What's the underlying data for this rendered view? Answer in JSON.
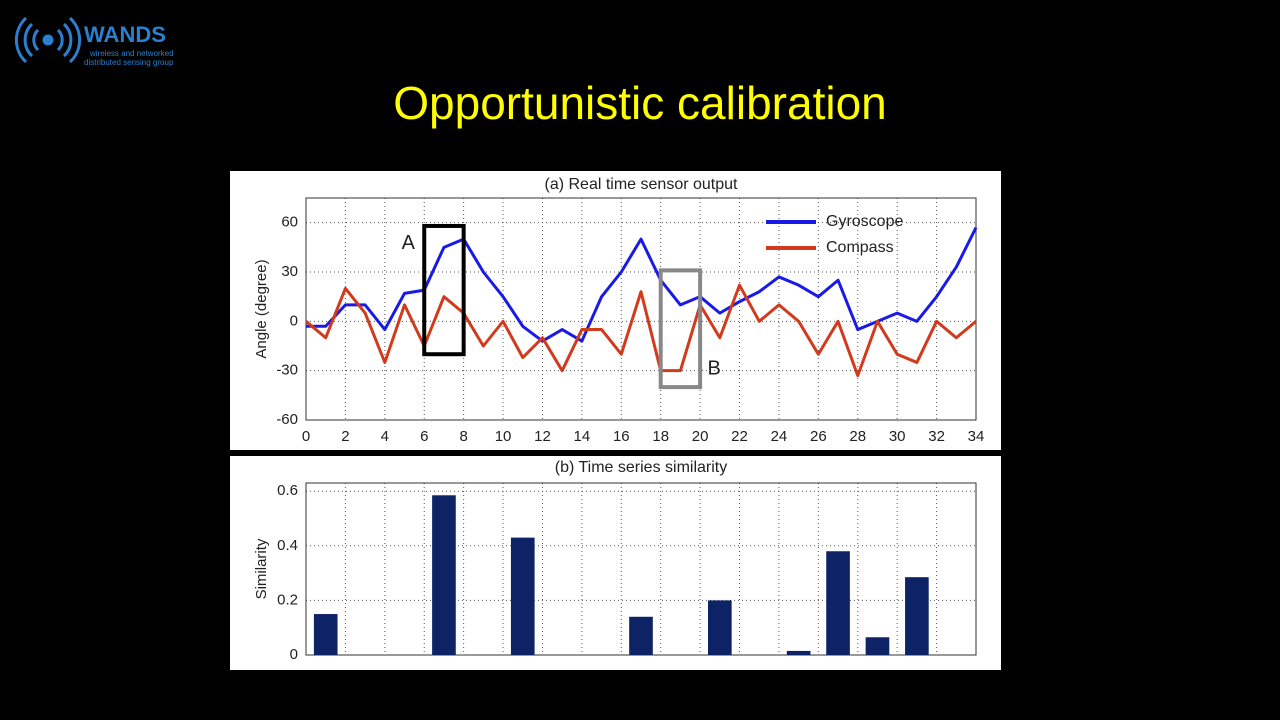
{
  "logo": {
    "name": "WANDS",
    "line1": "wireless and networked",
    "line2": "distributed sensing group"
  },
  "title": "Opportunistic calibration",
  "chart_data": [
    {
      "type": "line",
      "title": "(a) Real time sensor output",
      "ylabel": "Angle (degree)",
      "x": [
        0,
        1,
        2,
        3,
        4,
        5,
        6,
        7,
        8,
        9,
        10,
        11,
        12,
        13,
        14,
        15,
        16,
        17,
        18,
        19,
        20,
        21,
        22,
        23,
        24,
        25,
        26,
        27,
        28,
        29,
        30,
        31,
        32,
        33,
        34
      ],
      "series": [
        {
          "name": "Gyroscope",
          "color": "#1a1ae6",
          "values": [
            -3,
            -3,
            10,
            10,
            -5,
            17,
            19,
            45,
            50,
            30,
            15,
            -3,
            -12,
            -5,
            -12,
            15,
            30,
            50,
            25,
            10,
            15,
            5,
            12,
            18,
            27,
            22,
            15,
            25,
            -5,
            0,
            5,
            0,
            15,
            33,
            57
          ]
        },
        {
          "name": "Compass",
          "color": "#d23a1c",
          "values": [
            0,
            -10,
            20,
            5,
            -25,
            10,
            -15,
            15,
            5,
            -15,
            0,
            -22,
            -10,
            -30,
            -5,
            -5,
            -20,
            18,
            -30,
            -30,
            10,
            -10,
            22,
            0,
            10,
            0,
            -20,
            0,
            -33,
            0,
            -20,
            -25,
            0,
            -10,
            0
          ]
        }
      ],
      "xlim": [
        0,
        34
      ],
      "xticks": [
        0,
        2,
        4,
        6,
        8,
        10,
        12,
        14,
        16,
        18,
        20,
        22,
        24,
        26,
        28,
        30,
        32,
        34
      ],
      "ylim": [
        -60,
        75
      ],
      "yticks": [
        -60,
        -30,
        0,
        30,
        60
      ],
      "grid": true,
      "legend": "upper right",
      "annotations": [
        {
          "text": "A",
          "x": [
            6,
            8
          ],
          "y": [
            -20,
            58
          ],
          "color": "#000000"
        },
        {
          "text": "B",
          "x": [
            18,
            20
          ],
          "y": [
            -40,
            31
          ],
          "color": "#888888"
        }
      ]
    },
    {
      "type": "bar",
      "title": "(b) Time series similarity",
      "ylabel": "Similarity",
      "x": [
        1,
        7,
        11,
        17,
        21,
        25,
        27,
        29,
        31
      ],
      "values": [
        0.15,
        0.585,
        0.43,
        0.14,
        0.2,
        0.015,
        0.38,
        0.065,
        0.285
      ],
      "color": "#0d2366",
      "xlim": [
        0,
        34
      ],
      "xticks": [
        0,
        2,
        4,
        6,
        8,
        10,
        12,
        14,
        16,
        18,
        20,
        22,
        24,
        26,
        28,
        30,
        32,
        34
      ],
      "ylim": [
        0,
        0.63
      ],
      "yticks": [
        0,
        0.2,
        0.4,
        0.6
      ],
      "grid": true
    }
  ]
}
